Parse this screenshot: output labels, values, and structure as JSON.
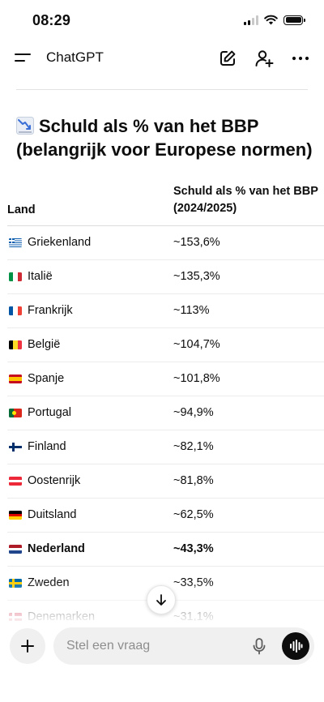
{
  "status_bar": {
    "time": "08:29"
  },
  "header": {
    "title": "ChatGPT"
  },
  "heading": {
    "text": "Schuld als % van het BBP (belangrijk voor Europese normen)"
  },
  "table": {
    "col_country": "Land",
    "col_debt_line1": "Schuld als % van het BBP",
    "col_debt_line2": "(2024/2025)",
    "rows": [
      {
        "country": "Griekenland",
        "value": "~153,6%",
        "flag": "greece-flag-icon"
      },
      {
        "country": "Italië",
        "value": "~135,3%",
        "flag": "italy-flag-icon"
      },
      {
        "country": "Frankrijk",
        "value": "~113%",
        "flag": "france-flag-icon"
      },
      {
        "country": "België",
        "value": "~104,7%",
        "flag": "belgium-flag-icon"
      },
      {
        "country": "Spanje",
        "value": "~101,8%",
        "flag": "spain-flag-icon"
      },
      {
        "country": "Portugal",
        "value": "~94,9%",
        "flag": "portugal-flag-icon"
      },
      {
        "country": "Finland",
        "value": "~82,1%",
        "flag": "finland-flag-icon"
      },
      {
        "country": "Oostenrijk",
        "value": "~81,8%",
        "flag": "austria-flag-icon"
      },
      {
        "country": "Duitsland",
        "value": "~62,5%",
        "flag": "germany-flag-icon"
      },
      {
        "country": "Nederland",
        "value": "~43,3%",
        "flag": "netherlands-flag-icon",
        "bold": true
      },
      {
        "country": "Zweden",
        "value": "~33,5%",
        "flag": "sweden-flag-icon"
      },
      {
        "country": "Denemarken",
        "value": "~31,1%",
        "flag": "denmark-flag-icon"
      }
    ]
  },
  "composer": {
    "placeholder": "Stel een vraag"
  }
}
